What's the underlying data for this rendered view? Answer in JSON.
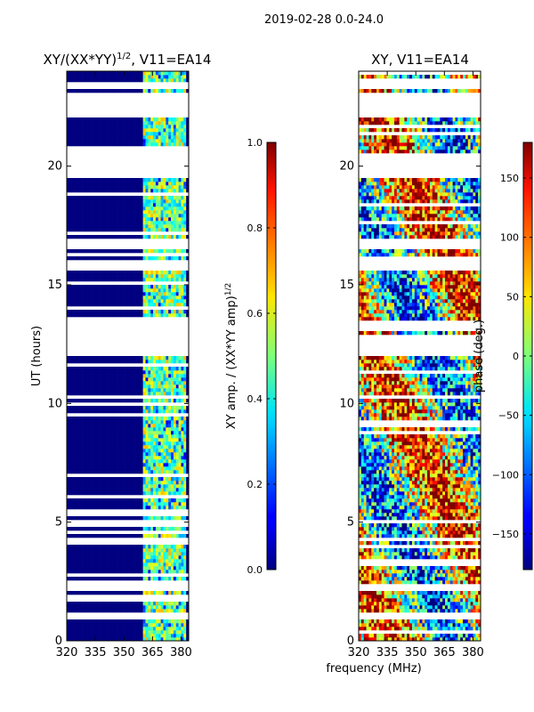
{
  "figure": {
    "suptitle": "2019-02-28 0.0-24.0",
    "shared_xlabel": "frequency (MHz)"
  },
  "chart_data": [
    {
      "type": "heatmap",
      "title": "XY/(XX*YY)",
      "title_sup": "1/2",
      "title_suffix": ", V11=EA14",
      "xlabel": "",
      "ylabel": "UT (hours)",
      "xlim": [
        320,
        384
      ],
      "ylim": [
        0,
        24
      ],
      "xticks": [
        320,
        335,
        350,
        365,
        380
      ],
      "yticks": [
        0,
        5,
        10,
        15,
        20
      ],
      "colorbar": {
        "label": "XY amp. / (XX*YY amp)",
        "label_sup": "1/2",
        "range": [
          0.0,
          1.0
        ],
        "ticks": [
          "0.0",
          "0.2",
          "0.4",
          "0.6",
          "0.8",
          "1.0"
        ],
        "tick_values": [
          0.0,
          0.2,
          0.4,
          0.6,
          0.8,
          1.0
        ],
        "colormap": "jet"
      },
      "background_value": 0.0,
      "signal_band_mhz": [
        360,
        383
      ],
      "signal_value_range": [
        0.3,
        0.7
      ],
      "data_gaps_ut_hours": [
        [
          0.9,
          1.1
        ],
        [
          2.2,
          2.4
        ],
        [
          4.95,
          5.1
        ],
        [
          12.0,
          12.3
        ],
        [
          12.5,
          12.8
        ],
        [
          13.1,
          13.4
        ],
        [
          15.6,
          15.9
        ],
        [
          16.6,
          16.9
        ],
        [
          19.6,
          20.5
        ],
        [
          22.1,
          23.0
        ],
        [
          23.3,
          23.45
        ]
      ]
    },
    {
      "type": "heatmap",
      "title": "XY, V11=EA14",
      "xlabel": "",
      "ylabel": "",
      "xlim": [
        320,
        384
      ],
      "ylim": [
        0,
        24
      ],
      "xticks": [
        320,
        335,
        350,
        365,
        380
      ],
      "yticks": [
        0,
        5,
        10,
        15,
        20
      ],
      "colorbar": {
        "label": "phase (deg.)",
        "range": [
          -180,
          180
        ],
        "ticks": [
          "−150",
          "−100",
          "−50",
          "0",
          "50",
          "100",
          "150"
        ],
        "tick_values": [
          -150,
          -100,
          -50,
          0,
          50,
          100,
          150
        ],
        "colormap": "jet"
      },
      "value_range": [
        -180,
        180
      ],
      "data_gaps_ut_hours": [
        [
          0.9,
          1.1
        ],
        [
          2.2,
          2.4
        ],
        [
          4.95,
          5.1
        ],
        [
          12.0,
          12.3
        ],
        [
          12.5,
          12.8
        ],
        [
          13.1,
          13.4
        ],
        [
          15.6,
          15.9
        ],
        [
          16.6,
          16.9
        ],
        [
          19.6,
          20.5
        ],
        [
          22.1,
          23.0
        ],
        [
          23.3,
          23.45
        ]
      ]
    }
  ]
}
